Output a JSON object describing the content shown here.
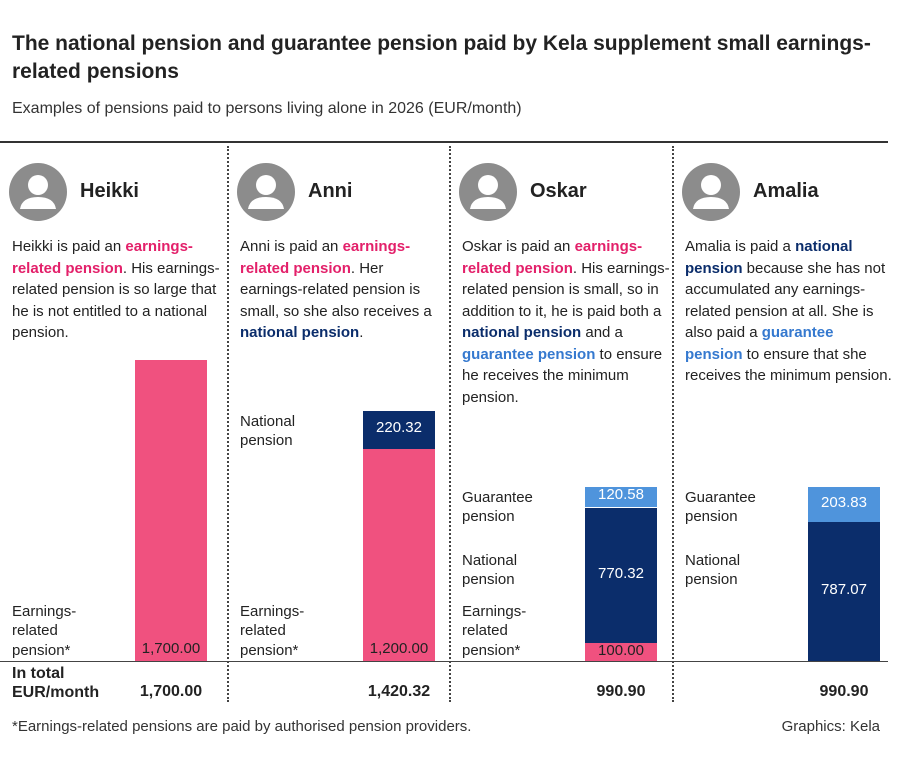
{
  "header": {
    "title": "The national pension and guarantee pension paid by Kela supplement small earnings-related pensions",
    "subtitle": "Examples of pensions paid to persons living alone in 2026 (EUR/month)"
  },
  "colors": {
    "earnings": "#f0517f",
    "national": "#0b2d6b",
    "guarantee": "#4f94dc"
  },
  "text_colors": {
    "earnings": "#e3206a",
    "national": "#0b2d6b",
    "guarantee": "#3579cf"
  },
  "total_caption": "In total EUR/month",
  "panels": [
    {
      "name": "Heikki",
      "description": [
        {
          "text": "Heikki is paid an "
        },
        {
          "text": "earnings-related pension",
          "style": "earnings"
        },
        {
          "text": ". His earnings-related pension is so large that he is not entitled to a national pension."
        }
      ],
      "segments": [
        {
          "name": "Earnings-related pension*",
          "kind": "earnings",
          "value": 1700,
          "value_label": "1,700.00"
        }
      ],
      "total": "1,700.00"
    },
    {
      "name": "Anni",
      "description": [
        {
          "text": "Anni is paid an "
        },
        {
          "text": "earnings-related pension",
          "style": "earnings"
        },
        {
          "text": ". Her earnings-related pension is small, so she also receives a "
        },
        {
          "text": "national pension",
          "style": "national"
        },
        {
          "text": "."
        }
      ],
      "segments": [
        {
          "name": "Earnings-related pension*",
          "kind": "earnings",
          "value": 1200,
          "value_label": "1,200.00"
        },
        {
          "name": "National pension",
          "kind": "national",
          "value": 220.32,
          "value_label": "220.32"
        }
      ],
      "total": "1,420.32"
    },
    {
      "name": "Oskar",
      "description": [
        {
          "text": "Oskar is paid an "
        },
        {
          "text": "earnings-related pension",
          "style": "earnings"
        },
        {
          "text": ". His earnings-related pension is small, so in addition to it, he is paid both a "
        },
        {
          "text": "national pension",
          "style": "national"
        },
        {
          "text": " and a "
        },
        {
          "text": "guarantee pension",
          "style": "guarantee"
        },
        {
          "text": " to ensure he receives the minimum pension."
        }
      ],
      "segments": [
        {
          "name": "Earnings-related pension*",
          "kind": "earnings",
          "value": 100,
          "value_label": "100.00"
        },
        {
          "name": "National pension",
          "kind": "national",
          "value": 770.32,
          "value_label": "770.32"
        },
        {
          "name": "Guarantee pension",
          "kind": "guarantee",
          "value": 120.58,
          "value_label": "120.58"
        }
      ],
      "total": "990.90"
    },
    {
      "name": "Amalia",
      "description": [
        {
          "text": "Amalia is paid a "
        },
        {
          "text": "national pension",
          "style": "national"
        },
        {
          "text": " because she has not accumulated any earnings-related pension at all.  She is also paid a "
        },
        {
          "text": "guarantee pension",
          "style": "guarantee"
        },
        {
          "text": " to ensure that she receives the minimum pension."
        }
      ],
      "segments": [
        {
          "name": "National pension",
          "kind": "national",
          "value": 787.07,
          "value_label": "787.07"
        },
        {
          "name": "Guarantee pension",
          "kind": "guarantee",
          "value": 203.83,
          "value_label": "203.83"
        }
      ],
      "total": "990.90"
    }
  ],
  "footer": {
    "note": "*Earnings-related pensions are paid by authorised pension providers.",
    "source": "Graphics: Kela"
  }
}
